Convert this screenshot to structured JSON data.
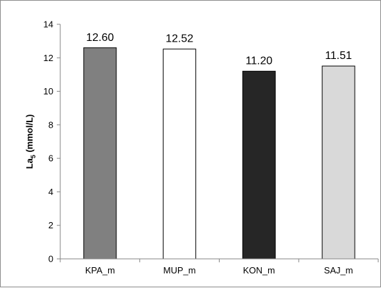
{
  "chart_data": {
    "type": "bar",
    "categories": [
      "KPA_m",
      "MUP_m",
      "KON_m",
      "SAJ_m"
    ],
    "values": [
      12.6,
      12.52,
      11.2,
      11.51
    ],
    "data_labels": [
      "12.60",
      "12.52",
      "11.20",
      "11.51"
    ],
    "colors": [
      "#808080",
      "#ffffff",
      "#262626",
      "#d9d9d9"
    ],
    "bar_outline": "#000000",
    "title": "",
    "xlabel": "",
    "ylabel": "La5 (mmol/L)",
    "ylabel_main": "La",
    "ylabel_sub": "5",
    "ylabel_rest": " (mmol/L)",
    "ylim": [
      0,
      14
    ],
    "y_ticks": [
      0,
      2,
      4,
      6,
      8,
      10,
      12,
      14
    ],
    "grid": false,
    "legend": "none"
  }
}
